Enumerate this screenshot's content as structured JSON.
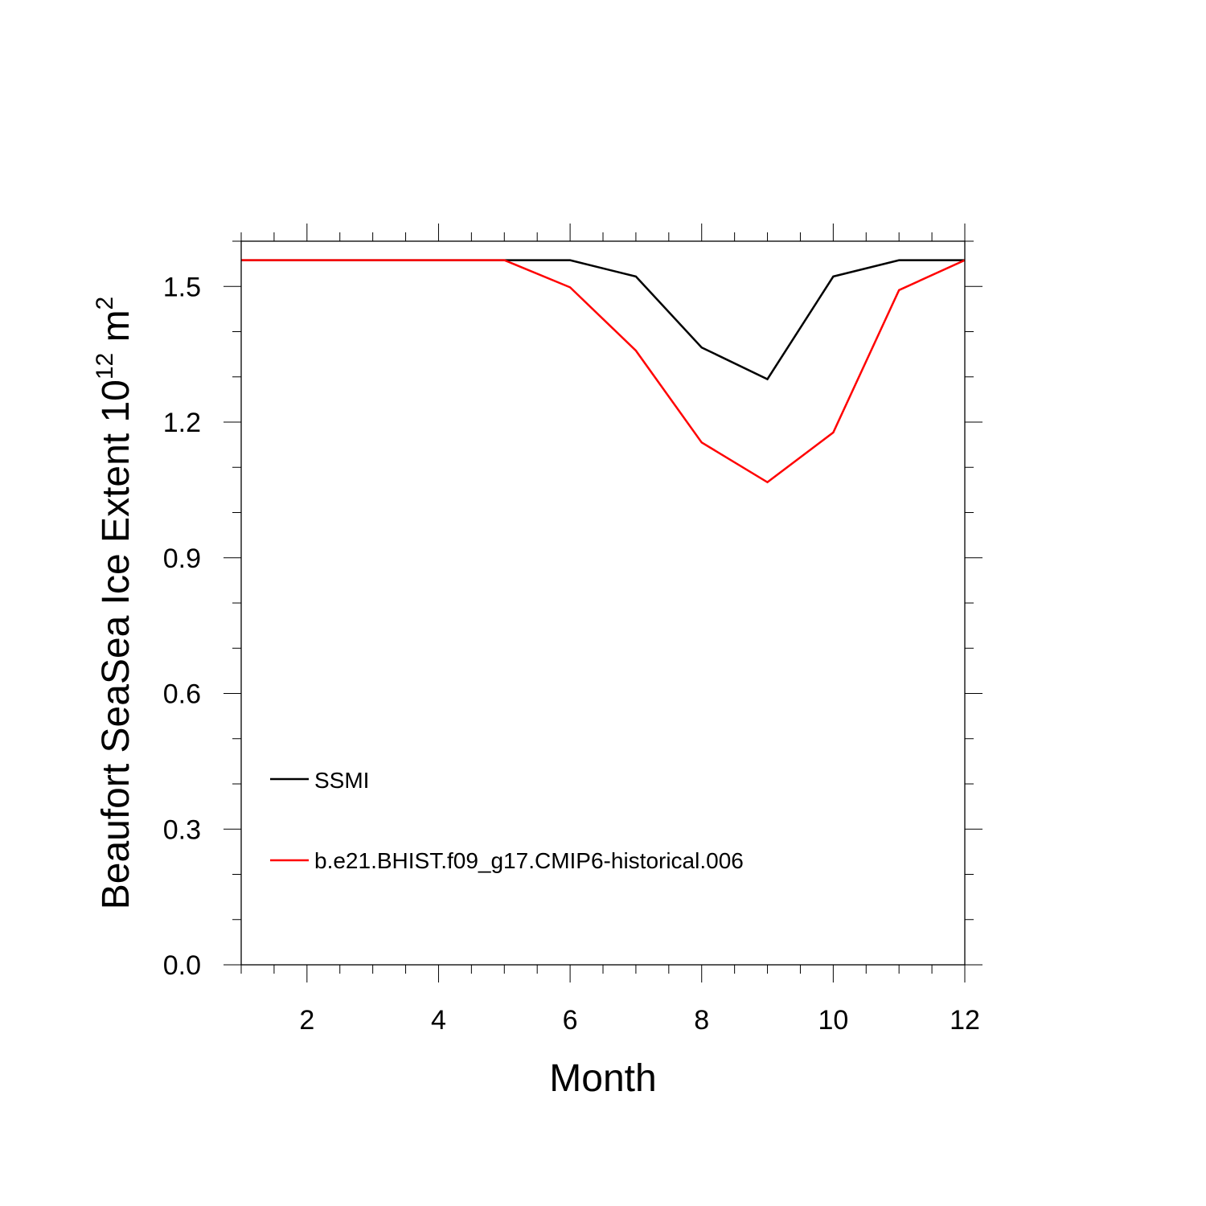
{
  "chart_data": {
    "type": "line",
    "title": "",
    "xlabel": "Month",
    "ylabel": {
      "main": "Beaufort SeaSea Ice Extent 10",
      "exp1": "12",
      "unit": " m",
      "exp2": "2"
    },
    "xlim": [
      1,
      12
    ],
    "ylim": [
      0,
      1.6
    ],
    "x_ticks": [
      2,
      4,
      6,
      8,
      10,
      12
    ],
    "x_tick_labels": [
      "2",
      "4",
      "6",
      "8",
      "10",
      "12"
    ],
    "y_ticks": [
      0,
      0.3,
      0.6,
      0.9,
      1.2,
      1.5
    ],
    "y_tick_labels": [
      "0.0",
      "0.3",
      "0.6",
      "0.9",
      "1.2",
      "1.5"
    ],
    "grid": false,
    "legend_position": "bottom-left",
    "x": [
      1,
      2,
      3,
      4,
      5,
      6,
      7,
      8,
      9,
      10,
      11,
      12
    ],
    "series": [
      {
        "name": "SSMI",
        "color": "#000000",
        "values": [
          1.558,
          1.558,
          1.558,
          1.558,
          1.558,
          1.558,
          1.522,
          1.365,
          1.295,
          1.522,
          1.558,
          1.558
        ]
      },
      {
        "name": "b.e21.BHIST.f09_g17.CMIP6-historical.006",
        "color": "#ff0000",
        "values": [
          1.558,
          1.558,
          1.558,
          1.558,
          1.558,
          1.498,
          1.358,
          1.155,
          1.067,
          1.177,
          1.492,
          1.558
        ]
      }
    ]
  }
}
